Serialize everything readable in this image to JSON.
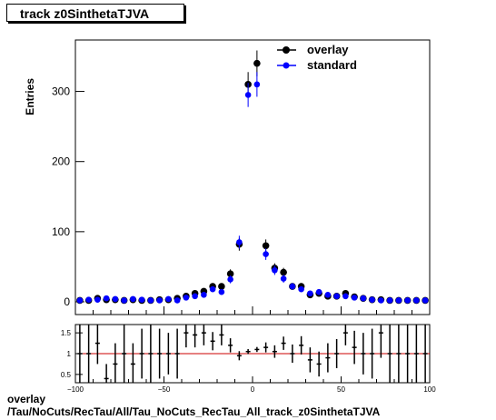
{
  "title": "track z0SinthetaTJVA",
  "caption": {
    "line1": "overlay",
    "line2": "/Tau/NoCuts/RecTau/All/Tau_NoCuts_RecTau_All_track_z0SinthetaTJVA"
  },
  "chart_data": [
    {
      "type": "scatter",
      "title": "track z0SinthetaTJVA",
      "ylabel": "Entries",
      "xlim": [
        -100,
        100
      ],
      "ylim": [
        0,
        355
      ],
      "x_ticks": [
        -100,
        -50,
        0,
        50,
        100
      ],
      "y_ticks": [
        0,
        100,
        200,
        300
      ],
      "legend": {
        "placement": "top-right"
      },
      "x": [
        -97.5,
        -92.5,
        -87.5,
        -82.5,
        -77.5,
        -72.5,
        -67.5,
        -62.5,
        -57.5,
        -52.5,
        -47.5,
        -42.5,
        -37.5,
        -32.5,
        -27.5,
        -22.5,
        -17.5,
        -12.5,
        -7.5,
        -2.5,
        2.5,
        7.5,
        12.5,
        17.5,
        22.5,
        27.5,
        32.5,
        37.5,
        42.5,
        47.5,
        52.5,
        57.5,
        62.5,
        67.5,
        72.5,
        77.5,
        82.5,
        87.5,
        92.5,
        97.5
      ],
      "series": [
        {
          "name": "overlay",
          "color": "#000000",
          "values": [
            2,
            2,
            5,
            3,
            3,
            2,
            3,
            2,
            2,
            3,
            3,
            5,
            8,
            12,
            15,
            22,
            22,
            40,
            82,
            310,
            340,
            80,
            48,
            42,
            22,
            22,
            10,
            12,
            8,
            8,
            12,
            7,
            5,
            3,
            3,
            2,
            2,
            2,
            2,
            2
          ]
        },
        {
          "name": "standard",
          "color": "#0000ff",
          "values": [
            2,
            3,
            3,
            5,
            4,
            2,
            4,
            3,
            2,
            2,
            4,
            2,
            6,
            8,
            10,
            18,
            14,
            32,
            85,
            295,
            310,
            68,
            45,
            33,
            22,
            18,
            12,
            14,
            10,
            8,
            8,
            6,
            5,
            3,
            2,
            2,
            2,
            2,
            2,
            2
          ]
        }
      ]
    },
    {
      "type": "scatter",
      "xlim": [
        -100,
        100
      ],
      "ylim": [
        0.3,
        1.7
      ],
      "x_ticks": [
        -100,
        -50,
        0,
        50,
        100
      ],
      "x_tick_labels": [
        "−100",
        "−50",
        "0",
        "50",
        "100"
      ],
      "y_ticks": [
        0.5,
        1,
        1.5
      ],
      "y_tick_labels": [
        "0.5",
        "1",
        "1.5"
      ],
      "reference_line": {
        "y": 1,
        "color": "#cc0000"
      },
      "x": [
        -97.5,
        -92.5,
        -87.5,
        -82.5,
        -77.5,
        -72.5,
        -67.5,
        -62.5,
        -57.5,
        -52.5,
        -47.5,
        -42.5,
        -37.5,
        -32.5,
        -27.5,
        -22.5,
        -17.5,
        -12.5,
        -7.5,
        -2.5,
        2.5,
        7.5,
        12.5,
        17.5,
        22.5,
        27.5,
        32.5,
        37.5,
        42.5,
        47.5,
        52.5,
        57.5,
        62.5,
        67.5,
        72.5,
        77.5,
        82.5,
        87.5,
        92.5,
        97.5
      ],
      "values": [
        1.0,
        1.0,
        1.25,
        0.4,
        0.75,
        1.0,
        0.75,
        1.0,
        1.0,
        1.0,
        1.0,
        1.0,
        1.5,
        1.45,
        1.5,
        1.3,
        1.45,
        1.2,
        0.95,
        1.05,
        1.1,
        1.15,
        1.05,
        1.25,
        1.0,
        1.2,
        0.85,
        0.75,
        0.9,
        1.0,
        1.5,
        1.15,
        1.0,
        1.0,
        1.5,
        1.0,
        1.0,
        1.0,
        1.0,
        1.0
      ],
      "errors": [
        0.7,
        0.7,
        0.5,
        0.35,
        0.5,
        0.7,
        0.5,
        0.6,
        0.7,
        0.6,
        0.5,
        0.6,
        0.35,
        0.3,
        0.3,
        0.22,
        0.25,
        0.17,
        0.11,
        0.06,
        0.06,
        0.12,
        0.15,
        0.16,
        0.22,
        0.22,
        0.3,
        0.3,
        0.35,
        0.35,
        0.3,
        0.4,
        0.5,
        0.6,
        0.6,
        0.7,
        0.7,
        0.7,
        0.7,
        0.7
      ]
    }
  ]
}
